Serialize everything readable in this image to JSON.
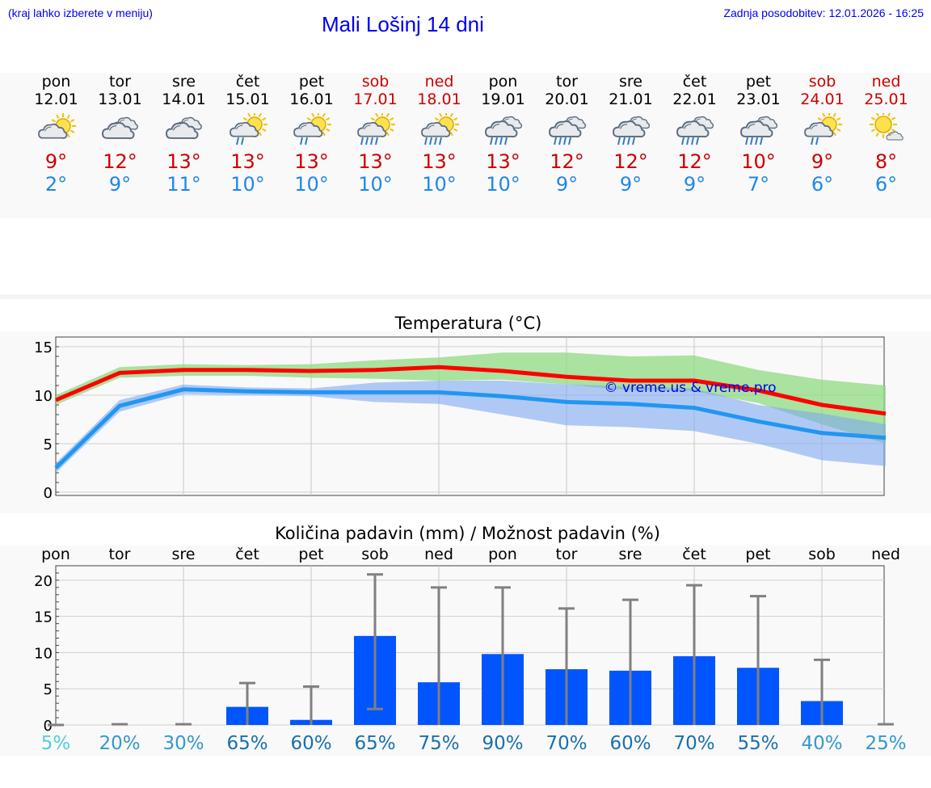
{
  "header": {
    "hint": "(kraj lahko izberete v meniju)",
    "title": "Mali Lošinj 14 dni",
    "updated": "Zadnja posodobitev: 12.01.2026 - 16:25"
  },
  "colors": {
    "link": "#0000ee",
    "max_temp": "#cc0000",
    "min_temp": "#1e88e5",
    "max_line": "#ff0000",
    "min_line": "#2196f3",
    "max_band": "#8fd980",
    "min_band": "#7fa8f0",
    "bar": "#0055ff",
    "error_bar": "#808080"
  },
  "forecast": [
    {
      "day": "pon",
      "date": "12.01",
      "icon": "partly-cloudy-icon",
      "max": "9°",
      "min": "2°",
      "weekend": false
    },
    {
      "day": "tor",
      "date": "13.01",
      "icon": "cloudy-icon",
      "max": "12°",
      "min": "9°",
      "weekend": false
    },
    {
      "day": "sre",
      "date": "14.01",
      "icon": "cloudy-icon",
      "max": "13°",
      "min": "11°",
      "weekend": false
    },
    {
      "day": "čet",
      "date": "15.01",
      "icon": "sun-rain-icon",
      "max": "13°",
      "min": "10°",
      "weekend": false
    },
    {
      "day": "pet",
      "date": "16.01",
      "icon": "sun-rain-icon",
      "max": "13°",
      "min": "10°",
      "weekend": false
    },
    {
      "day": "sob",
      "date": "17.01",
      "icon": "sun-heavy-rain-icon",
      "max": "13°",
      "min": "10°",
      "weekend": true
    },
    {
      "day": "ned",
      "date": "18.01",
      "icon": "sun-heavy-rain-icon",
      "max": "13°",
      "min": "10°",
      "weekend": true
    },
    {
      "day": "pon",
      "date": "19.01",
      "icon": "cloud-rain-icon",
      "max": "13°",
      "min": "10°",
      "weekend": false
    },
    {
      "day": "tor",
      "date": "20.01",
      "icon": "cloud-rain-icon",
      "max": "12°",
      "min": "9°",
      "weekend": false
    },
    {
      "day": "sre",
      "date": "21.01",
      "icon": "cloud-rain-icon",
      "max": "12°",
      "min": "9°",
      "weekend": false
    },
    {
      "day": "čet",
      "date": "22.01",
      "icon": "cloud-rain-icon",
      "max": "12°",
      "min": "9°",
      "weekend": false
    },
    {
      "day": "pet",
      "date": "23.01",
      "icon": "cloud-rain-icon",
      "max": "10°",
      "min": "7°",
      "weekend": false
    },
    {
      "day": "sob",
      "date": "24.01",
      "icon": "sun-rain-icon",
      "max": "9°",
      "min": "6°",
      "weekend": true
    },
    {
      "day": "ned",
      "date": "25.01",
      "icon": "sun-small-cloud-icon",
      "max": "8°",
      "min": "6°",
      "weekend": true
    }
  ],
  "chart_data": [
    {
      "type": "line",
      "title": "Temperatura (°C)",
      "watermark": "© vreme.us & vreme.pro",
      "x": [
        "pon",
        "tor",
        "sre",
        "čet",
        "pet",
        "sob",
        "ned",
        "pon",
        "tor",
        "sre",
        "čet",
        "pet",
        "sob",
        "ned"
      ],
      "ylim": [
        0,
        16
      ],
      "yticks": [
        0,
        5,
        10,
        15
      ],
      "grid": true,
      "series": [
        {
          "name": "max",
          "values": [
            9.5,
            12.3,
            12.6,
            12.6,
            12.5,
            12.6,
            12.9,
            12.5,
            11.9,
            11.5,
            11.5,
            10.5,
            9.0,
            8.1
          ],
          "band_low": [
            9.0,
            11.8,
            12.0,
            12.0,
            11.8,
            11.7,
            11.5,
            11.6,
            11.1,
            10.5,
            10.4,
            9.2,
            7.0,
            5.0
          ],
          "band_high": [
            10.0,
            12.9,
            13.2,
            13.1,
            13.2,
            13.6,
            13.9,
            14.4,
            14.4,
            14.0,
            14.1,
            12.6,
            11.6,
            11.0
          ]
        },
        {
          "name": "min",
          "values": [
            2.5,
            8.9,
            10.6,
            10.4,
            10.3,
            10.3,
            10.3,
            9.9,
            9.3,
            9.1,
            8.7,
            7.3,
            6.1,
            5.6
          ],
          "band_low": [
            2.0,
            8.3,
            10.1,
            10.0,
            9.9,
            9.3,
            9.1,
            8.0,
            6.9,
            6.7,
            6.3,
            5.0,
            3.3,
            2.7
          ],
          "band_high": [
            3.0,
            9.5,
            11.1,
            10.8,
            10.7,
            11.3,
            11.5,
            11.5,
            11.1,
            10.9,
            10.7,
            9.0,
            8.1,
            7.0
          ]
        }
      ]
    },
    {
      "type": "bar",
      "title": "Količina padavin (mm) / Možnost padavin (%)",
      "categories": [
        "pon",
        "tor",
        "sre",
        "čet",
        "pet",
        "sob",
        "ned",
        "pon",
        "tor",
        "sre",
        "čet",
        "pet",
        "sob",
        "ned"
      ],
      "values": [
        0,
        0,
        0,
        2.5,
        0.7,
        12.3,
        5.9,
        9.8,
        7.7,
        7.5,
        9.5,
        7.9,
        3.3,
        0
      ],
      "error_low": [
        0,
        0,
        0,
        0,
        0,
        2.2,
        0,
        0,
        0,
        0,
        0,
        0,
        0,
        0
      ],
      "error_high": [
        0,
        0.1,
        0.1,
        5.8,
        5.3,
        20.8,
        19.0,
        19.0,
        16.1,
        17.3,
        19.3,
        17.8,
        9.0,
        0.1
      ],
      "probability": [
        "5%",
        "20%",
        "30%",
        "65%",
        "60%",
        "65%",
        "75%",
        "90%",
        "70%",
        "60%",
        "70%",
        "55%",
        "40%",
        "25%"
      ],
      "probability_colors": [
        "#55ccdd",
        "#3399cc",
        "#3399cc",
        "#1a6fb0",
        "#1a6fb0",
        "#1a6fb0",
        "#1a6fb0",
        "#1a6fb0",
        "#1a6fb0",
        "#1a6fb0",
        "#1a6fb0",
        "#1a6fb0",
        "#3399cc",
        "#3399cc"
      ],
      "ylim": [
        0,
        22
      ],
      "yticks": [
        0,
        5,
        10,
        15,
        20
      ],
      "ylabels": [
        "0",
        "5",
        "10",
        "15",
        "20"
      ],
      "xlabel": "",
      "ylabel": ""
    }
  ]
}
